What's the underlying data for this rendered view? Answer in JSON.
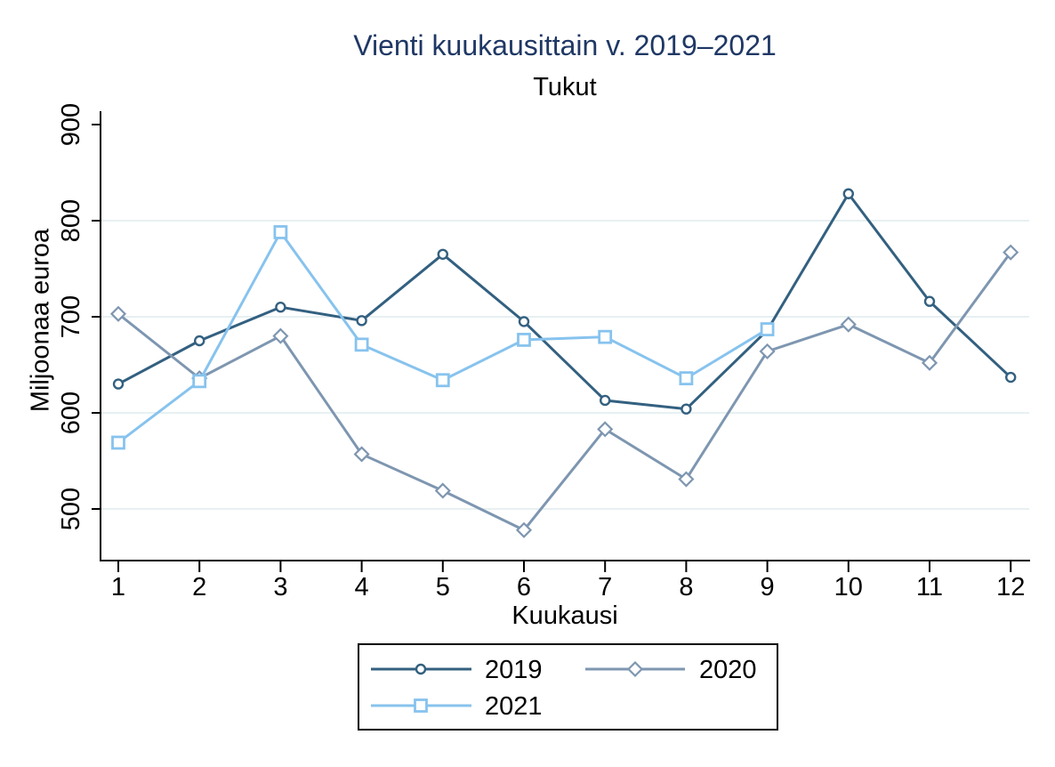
{
  "chart_data": {
    "type": "line",
    "title": "Vienti kuukausittain v. 2019–2021",
    "subtitle": "Tukut",
    "xlabel": "Kuukausi",
    "ylabel": "Miljoonaa euroa",
    "x": [
      1,
      2,
      3,
      4,
      5,
      6,
      7,
      8,
      9,
      10,
      11,
      12
    ],
    "yticks": [
      500,
      600,
      700,
      800,
      900
    ],
    "ylim": [
      446,
      914
    ],
    "grid": true,
    "legend_position": "bottom-boxed",
    "series": [
      {
        "name": "2019",
        "color": "#336080",
        "marker": "circle",
        "values": [
          630,
          675,
          710,
          696,
          765,
          695,
          613,
          604,
          686,
          828,
          716,
          637
        ]
      },
      {
        "name": "2020",
        "color": "#7e96b0",
        "marker": "diamond",
        "values": [
          703,
          636,
          680,
          557,
          519,
          478,
          583,
          531,
          664,
          692,
          652,
          767
        ]
      },
      {
        "name": "2021",
        "color": "#87c3ee",
        "marker": "square",
        "values": [
          569,
          633,
          788,
          671,
          634,
          676,
          679,
          636,
          687
        ]
      }
    ],
    "colors": {
      "title": "#1f3864",
      "axis": "#000000",
      "grid": "#e7f0f2",
      "background": "#ffffff"
    }
  }
}
